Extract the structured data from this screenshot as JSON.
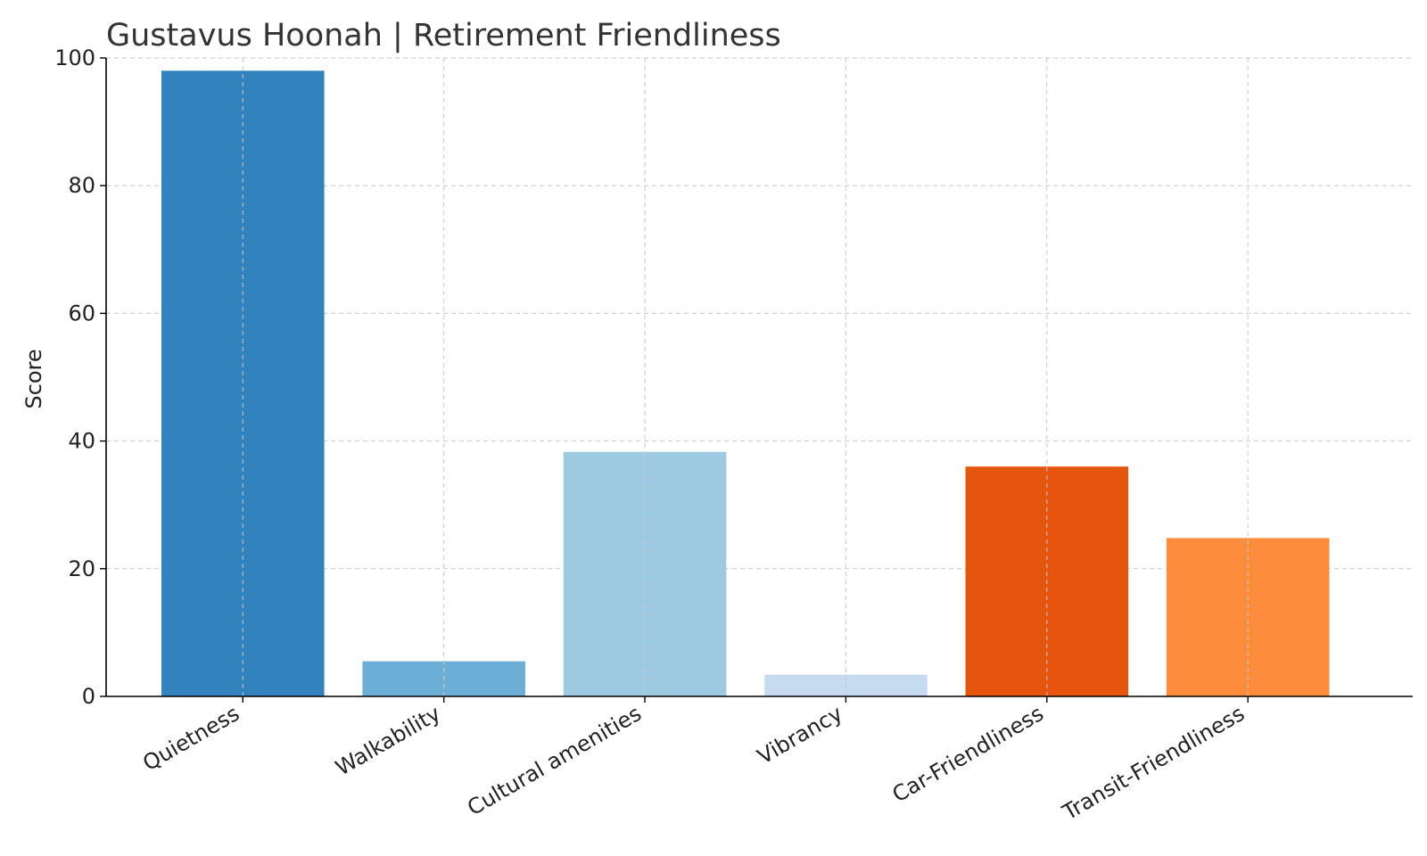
{
  "chart_data": {
    "type": "bar",
    "title": "Gustavus Hoonah | Retirement Friendliness",
    "xlabel": "",
    "ylabel": "Score",
    "categories": [
      "Quietness",
      "Walkability",
      "Cultural amenities",
      "Vibrancy",
      "Car-Friendliness",
      "Transit-Friendliness"
    ],
    "values": [
      98,
      5.5,
      38.3,
      3.4,
      36,
      24.8
    ],
    "colors": [
      "#3182bd",
      "#6baed6",
      "#9ecae1",
      "#c6dbef",
      "#e6550d",
      "#fd8d3c"
    ],
    "ylim": [
      0,
      100
    ],
    "yticks": [
      0,
      20,
      40,
      60,
      80,
      100
    ],
    "grid": true,
    "legend": "none"
  }
}
